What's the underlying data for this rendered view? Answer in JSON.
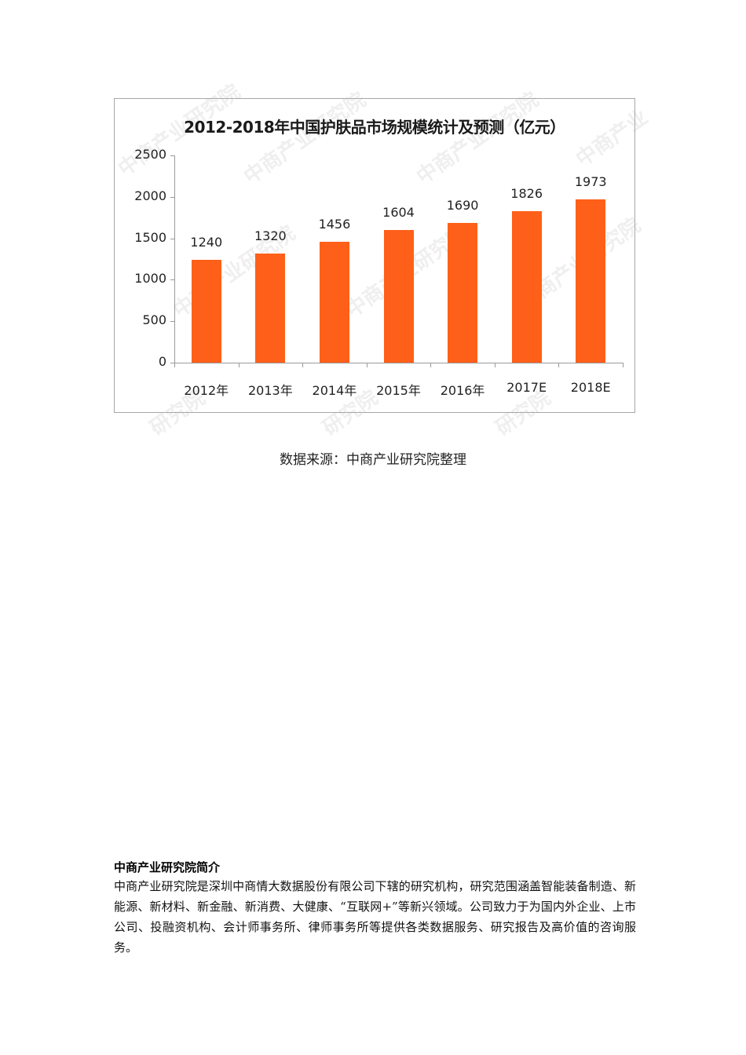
{
  "chart_data": {
    "type": "bar",
    "title": "2012-2018年中国护肤品市场规模统计及预测（亿元）",
    "categories": [
      "2012年",
      "2013年",
      "2014年",
      "2015年",
      "2016年",
      "2017E",
      "2018E"
    ],
    "values": [
      1240,
      1320,
      1456,
      1604,
      1690,
      1826,
      1973
    ],
    "value_labels": [
      "1240",
      "1320",
      "1456",
      "1604",
      "1690",
      "1826",
      "1973"
    ],
    "xlabel": "",
    "ylabel": "",
    "ylim": [
      0,
      2500
    ],
    "yticks": [
      "0",
      "500",
      "1000",
      "1500",
      "2000",
      "2500"
    ],
    "bar_color": "#fe6019",
    "grid": false,
    "legend": "none",
    "watermark": "中商产业研究院 www.askci.com/reports/"
  },
  "source": "数据来源：中商产业研究院整理",
  "intro": {
    "title": "中商产业研究院简介",
    "body": "中商产业研究院是深圳中商情大数据股份有限公司下辖的研究机构，研究范围涵盖智能装备制造、新能源、新材料、新金融、新消费、大健康、“互联网+”等新兴领域。公司致力于为国内外企业、上市公司、投融资机构、会计师事务所、律师事务所等提供各类数据服务、研究报告及高价值的咨询服务。"
  }
}
